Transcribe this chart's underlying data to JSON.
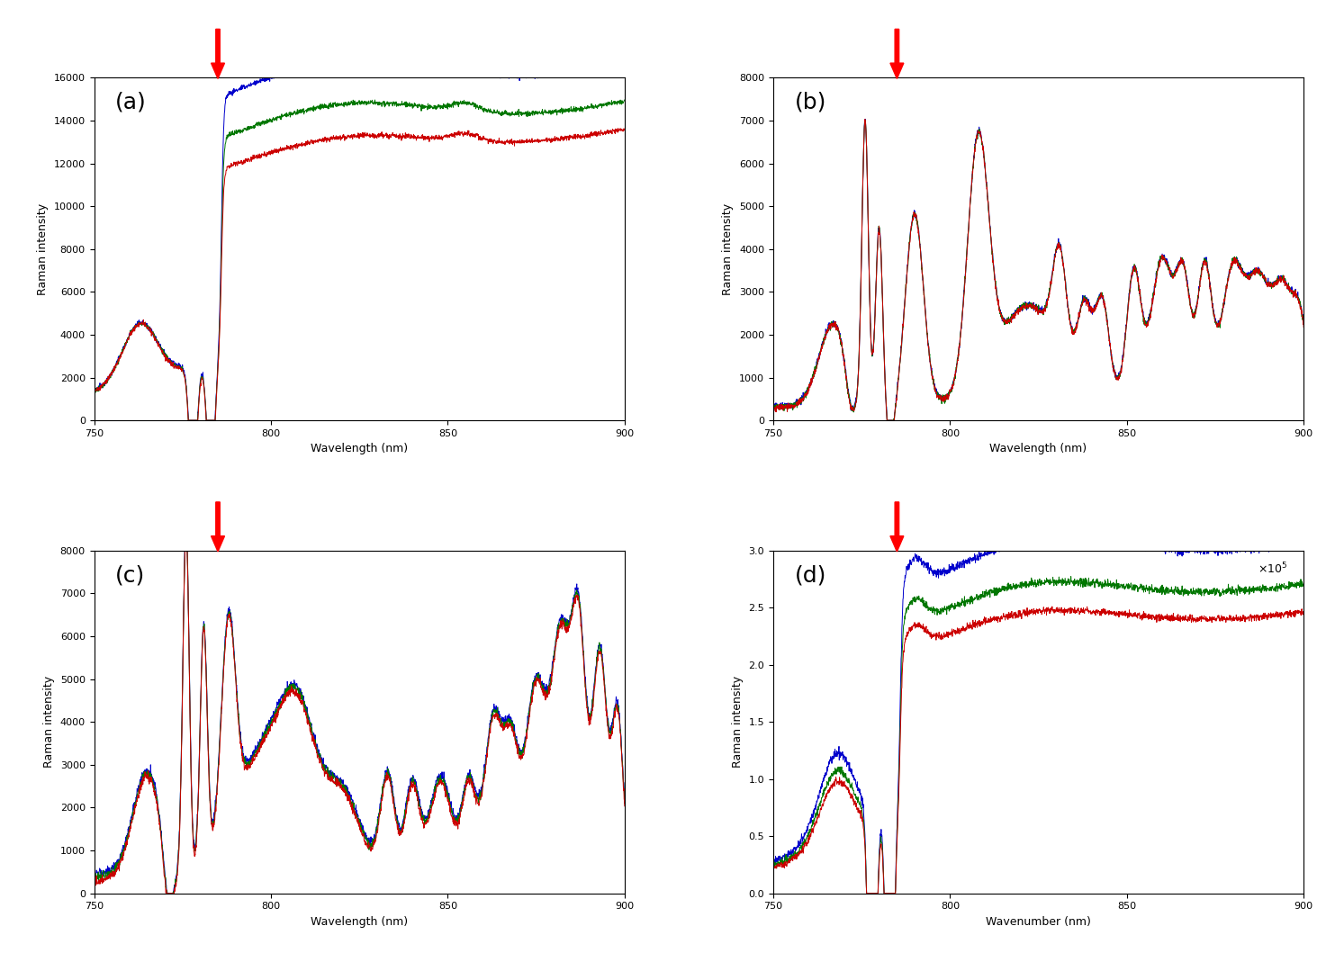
{
  "fig_width": 14.93,
  "fig_height": 10.79,
  "dpi": 100,
  "background_color": "#ffffff",
  "subplots": [
    {
      "label": "(a)",
      "xlabel": "Wavelength (nm)",
      "ylabel": "Raman intensity",
      "xlim": [
        750,
        900
      ],
      "ylim": [
        0,
        16000
      ],
      "yticks": [
        0,
        2000,
        4000,
        6000,
        8000,
        10000,
        12000,
        14000,
        16000
      ]
    },
    {
      "label": "(b)",
      "xlabel": "Wavelength (nm)",
      "ylabel": "Raman intensity",
      "xlim": [
        750,
        900
      ],
      "ylim": [
        0,
        8000
      ],
      "yticks": [
        0,
        1000,
        2000,
        3000,
        4000,
        5000,
        6000,
        7000,
        8000
      ]
    },
    {
      "label": "(c)",
      "xlabel": "Wavelength (nm)",
      "ylabel": "Raman intensity",
      "xlim": [
        750,
        900
      ],
      "ylim": [
        0,
        8000
      ],
      "yticks": [
        0,
        1000,
        2000,
        3000,
        4000,
        5000,
        6000,
        7000,
        8000
      ]
    },
    {
      "label": "(d)",
      "xlabel": "Wavenumber (nm)",
      "ylabel": "Raman intensity",
      "xlim": [
        750,
        900
      ],
      "ylim": [
        0,
        300000.0
      ],
      "yticks": [
        0,
        50000.0,
        100000.0,
        150000.0,
        200000.0,
        250000.0,
        300000.0
      ],
      "ytick_labels": [
        "0",
        "0.5",
        "1",
        "1.5",
        "2",
        "2.5",
        "3"
      ],
      "sci_label": "x10^5"
    }
  ],
  "line_colors": [
    "#0000cc",
    "#007700",
    "#cc0000"
  ],
  "arrow_color": "#ff0000",
  "arrow_nm": 785,
  "xticks": [
    750,
    800,
    850,
    900
  ]
}
